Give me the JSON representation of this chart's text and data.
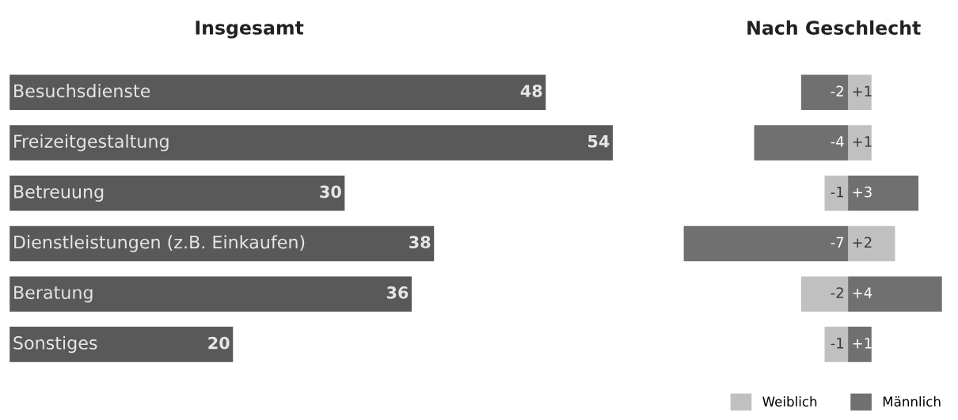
{
  "chart_data": [
    {
      "type": "bar",
      "orientation": "horizontal",
      "title": "Insgesamt",
      "categories": [
        "Besuchsdienste",
        "Freizeitgestaltung",
        "Betreuung",
        "Dienstleistungen (z.B. Einkaufen)",
        "Beratung",
        "Sonstiges"
      ],
      "values": [
        48,
        54,
        30,
        38,
        36,
        20
      ],
      "color": "#595959",
      "data_labels": true
    },
    {
      "type": "bar",
      "orientation": "horizontal",
      "title": "Nach Geschlecht",
      "categories": [
        null,
        null,
        null,
        null,
        null,
        null
      ],
      "tick_labels": false,
      "legend": "bottom right",
      "stacked": true,
      "series": [
        {
          "name": "Weiblich",
          "color": "#c0c0c0",
          "values": [
            1,
            1,
            -1,
            2,
            -2,
            -1
          ],
          "value_labels": [
            "+1",
            "+1",
            "-1",
            "+2",
            "-2",
            "-1"
          ]
        },
        {
          "name": "Männlich",
          "color": "#707070",
          "values": [
            -2,
            -4,
            3,
            -7,
            4,
            1
          ],
          "value_labels": [
            "-2",
            "-4",
            "+3",
            "-7",
            "+4",
            "+1"
          ]
        }
      ]
    }
  ]
}
